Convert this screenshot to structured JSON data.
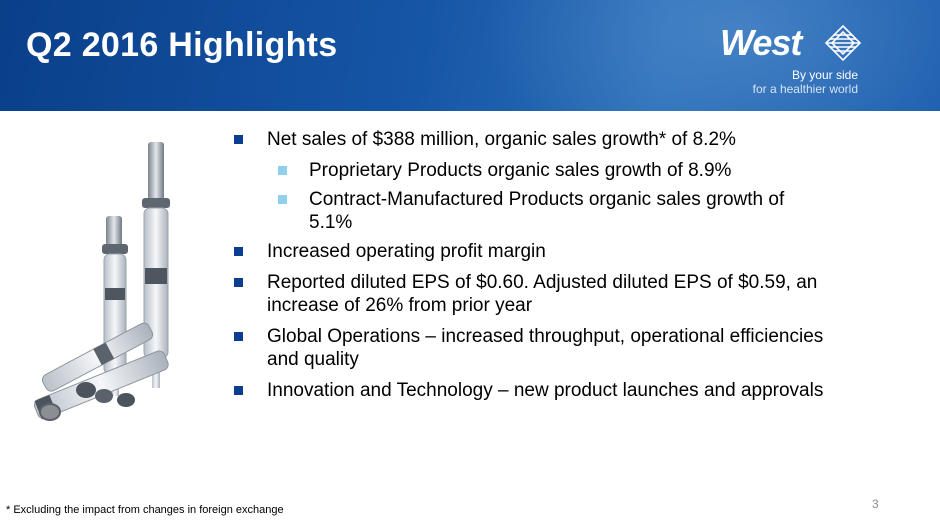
{
  "header": {
    "title": "Q2 2016 Highlights"
  },
  "logo": {
    "name": "West",
    "tagline_1": "By your side",
    "tagline_2": "for a healthier world"
  },
  "bullets": [
    {
      "level": 1,
      "text": "Net sales of $388 million, organic sales growth* of 8.2%"
    },
    {
      "level": 2,
      "text": "Proprietary Products organic sales growth of 8.9%"
    },
    {
      "level": 2,
      "text": "Contract-Manufactured Products organic sales growth of 5.1%"
    },
    {
      "level": 1,
      "text": "Increased operating profit margin"
    },
    {
      "level": 1,
      "text": "Reported diluted EPS of $0.60.  Adjusted diluted EPS of $0.59, an increase of 26% from prior year"
    },
    {
      "level": 1,
      "text": "Global Operations – increased throughput, operational efficiencies and quality"
    },
    {
      "level": 1,
      "text": "Innovation and Technology – new product launches and approvals"
    }
  ],
  "footnote": "* Excluding the impact from changes in foreign exchange",
  "page_number": "3",
  "colors": {
    "header_blue": "#1656a6",
    "bullet_primary": "#0b3d91",
    "bullet_secondary": "#8fd0ee"
  },
  "image": {
    "subject": "syringes-and-stoppers"
  }
}
